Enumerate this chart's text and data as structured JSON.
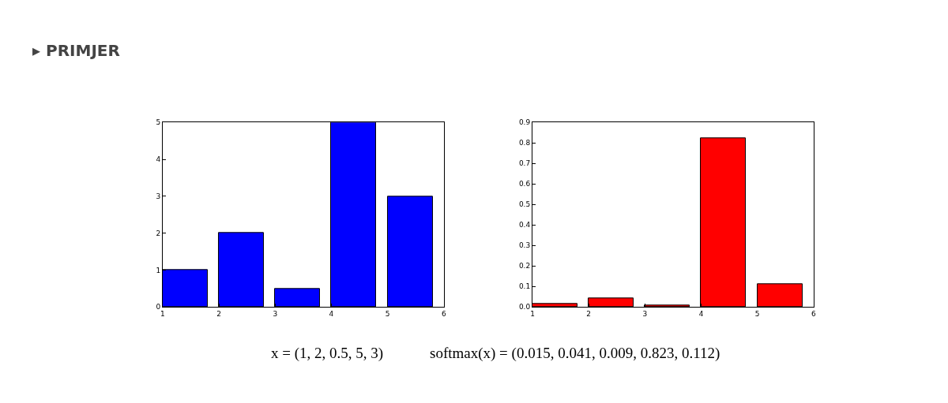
{
  "chart_data": [
    {
      "type": "bar",
      "title": "▸ PRIMJER",
      "xlabel": "x = (1, 2, 0.5, 5, 3)",
      "x": [
        1.4,
        2.4,
        3.4,
        4.4,
        5.4
      ],
      "values": [
        1,
        2,
        0.5,
        5,
        3
      ],
      "color": "#0000ff",
      "xlim": [
        1,
        6
      ],
      "xticks": [
        1,
        2,
        3,
        4,
        5,
        6
      ],
      "ylim": [
        0,
        5
      ],
      "yticks": [
        0,
        1,
        2,
        3,
        4,
        5
      ]
    },
    {
      "type": "bar",
      "xlabel": "softmax(x) = (0.015, 0.041, 0.009, 0.823, 0.112)",
      "x": [
        1.4,
        2.4,
        3.4,
        4.4,
        5.4
      ],
      "values": [
        0.015,
        0.041,
        0.009,
        0.823,
        0.112
      ],
      "color": "#ff0000",
      "xlim": [
        1,
        6
      ],
      "xticks": [
        1,
        2,
        3,
        4,
        5,
        6
      ],
      "ylim": [
        0,
        0.9
      ],
      "yticks": [
        {
          "value": 0,
          "label": "0.0"
        },
        0.1,
        0.2,
        0.3,
        0.4,
        0.5,
        0.6,
        0.7,
        0.8,
        0.9
      ]
    }
  ]
}
